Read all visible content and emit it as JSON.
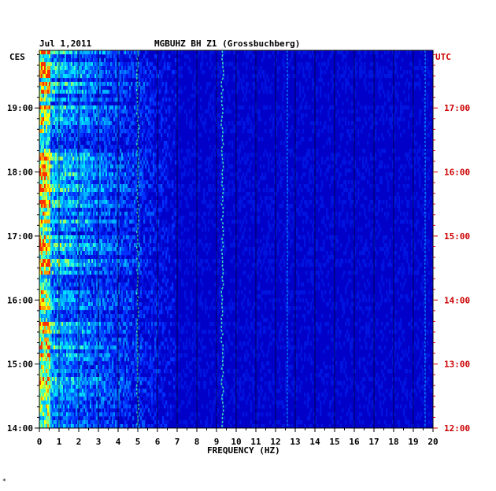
{
  "chart_data": {
    "type": "heatmap",
    "date": "Jul 1,2011",
    "station": "MGBUHZ BH Z1 (Grossbuchberg)",
    "left_axis_label": "CES",
    "right_axis_label": "UTC",
    "xlabel": "FREQUENCY (HZ)",
    "x_ticks": [
      "0",
      "1",
      "2",
      "3",
      "4",
      "5",
      "6",
      "7",
      "8",
      "9",
      "10",
      "11",
      "12",
      "13",
      "14",
      "15",
      "16",
      "17",
      "18",
      "19",
      "20"
    ],
    "xlim": [
      0,
      20
    ],
    "left_time_ticks": [
      "19:00",
      "18:00",
      "17:00",
      "16:00",
      "15:00",
      "14:00"
    ],
    "right_time_ticks": [
      "17:00",
      "16:00",
      "15:00",
      "14:00",
      "13:00",
      "12:00"
    ],
    "ylim_local_hours": [
      14.0,
      19.9
    ],
    "grid": "vertical lines at each 1 Hz",
    "colors": {
      "background": "#0000c8",
      "grid": "#000000",
      "left_text": "#000000",
      "right_text": "#cc0000"
    },
    "features": [
      {
        "kind": "broadband-noise",
        "freq_range": [
          0,
          7
        ]
      },
      {
        "kind": "tremor-line",
        "freq_hz": 5.0
      },
      {
        "kind": "tremor-line",
        "freq_hz": 9.3
      },
      {
        "kind": "spectral-line",
        "freq_hz": 12.6
      },
      {
        "kind": "spectral-line",
        "freq_hz": 19.6
      }
    ],
    "footnote": "*"
  }
}
